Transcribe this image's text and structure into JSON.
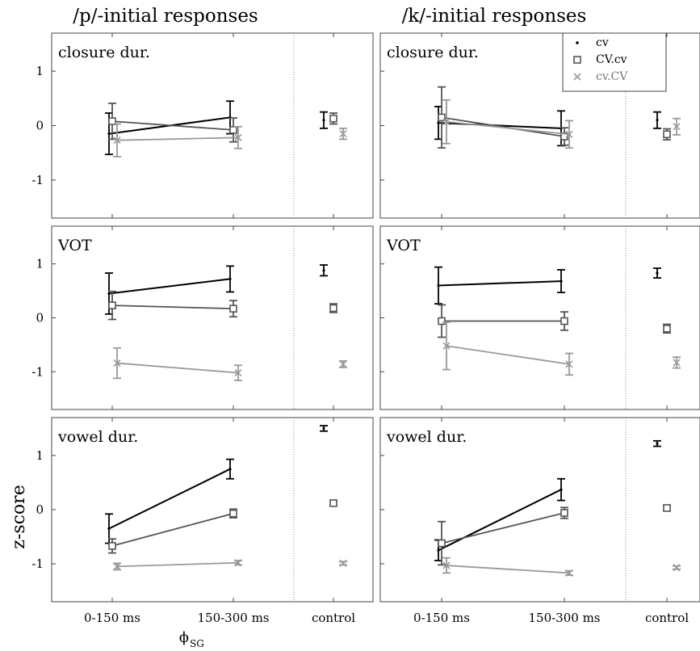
{
  "chart_data": {
    "type": "line",
    "description_free": true,
    "y_axis": {
      "label": "z-score",
      "ylim": [
        -1.7,
        1.7
      ],
      "ticks": [
        "1",
        "0",
        "-1"
      ],
      "tick_values": [
        1,
        0,
        -1
      ]
    },
    "x_axis": {
      "label_main": "ϕ",
      "label_sub": "SG",
      "categories": [
        "0-150 ms",
        "150-300 ms"
      ],
      "control_label": "control"
    },
    "legend": {
      "placement": "top-right",
      "entries": [
        {
          "name": "cv",
          "marker": "dot",
          "color": "#000000"
        },
        {
          "name": "CV.cv",
          "marker": "square",
          "color": "#555555"
        },
        {
          "name": "cv.CV",
          "marker": "x",
          "color": "#999999"
        }
      ]
    },
    "columns": [
      {
        "title": "/p/-initial responses"
      },
      {
        "title": "/k/-initial responses"
      }
    ],
    "rows": [
      {
        "label": "closure dur."
      },
      {
        "label": "VOT"
      },
      {
        "label": "vowel dur."
      }
    ],
    "panels": [
      {
        "column": 0,
        "row": 0,
        "series": [
          {
            "name": "cv",
            "values": [
              -0.15,
              0.15
            ],
            "err": [
              0.38,
              0.3
            ],
            "control": 0.1,
            "control_err": 0.15
          },
          {
            "name": "CV.cv",
            "values": [
              0.08,
              -0.08
            ],
            "err": [
              0.33,
              0.22
            ],
            "control": 0.13,
            "control_err": 0.1
          },
          {
            "name": "cv.CV",
            "values": [
              -0.27,
              -0.22
            ],
            "err": [
              0.3,
              0.2
            ],
            "control": -0.15,
            "control_err": 0.1
          }
        ]
      },
      {
        "column": 1,
        "row": 0,
        "series": [
          {
            "name": "cv",
            "values": [
              0.05,
              -0.05
            ],
            "err": [
              0.3,
              0.32
            ],
            "control": 0.1,
            "control_err": 0.15
          },
          {
            "name": "CV.cv",
            "values": [
              0.15,
              -0.2
            ],
            "err": [
              0.56,
              0.16
            ],
            "control": -0.16,
            "control_err": 0.1
          },
          {
            "name": "cv.CV",
            "values": [
              0.07,
              -0.16
            ],
            "err": [
              0.4,
              0.25
            ],
            "control": -0.02,
            "control_err": 0.15
          }
        ]
      },
      {
        "column": 0,
        "row": 1,
        "series": [
          {
            "name": "cv",
            "values": [
              0.45,
              0.72
            ],
            "err": [
              0.38,
              0.24
            ],
            "control": 0.88,
            "control_err": 0.1
          },
          {
            "name": "CV.cv",
            "values": [
              0.23,
              0.17
            ],
            "err": [
              0.26,
              0.15
            ],
            "control": 0.18,
            "control_err": 0.08
          },
          {
            "name": "cv.CV",
            "values": [
              -0.84,
              -1.02
            ],
            "err": [
              0.28,
              0.14
            ],
            "control": -0.86,
            "control_err": 0.06
          }
        ]
      },
      {
        "column": 1,
        "row": 1,
        "series": [
          {
            "name": "cv",
            "values": [
              0.6,
              0.68
            ],
            "err": [
              0.34,
              0.21
            ],
            "control": 0.83,
            "control_err": 0.09
          },
          {
            "name": "CV.cv",
            "values": [
              -0.06,
              -0.06
            ],
            "err": [
              0.3,
              0.17
            ],
            "control": -0.2,
            "control_err": 0.08
          },
          {
            "name": "cv.CV",
            "values": [
              -0.52,
              -0.86
            ],
            "err": [
              0.44,
              0.2
            ],
            "control": -0.83,
            "control_err": 0.1
          }
        ]
      },
      {
        "column": 0,
        "row": 2,
        "series": [
          {
            "name": "cv",
            "values": [
              -0.35,
              0.75
            ],
            "err": [
              0.27,
              0.18
            ],
            "control": 1.5,
            "control_err": 0.05
          },
          {
            "name": "CV.cv",
            "values": [
              -0.67,
              -0.07
            ],
            "err": [
              0.13,
              0.08
            ],
            "control": 0.12,
            "control_err": 0.04
          },
          {
            "name": "cv.CV",
            "values": [
              -1.05,
              -0.98
            ],
            "err": [
              0.06,
              0.04
            ],
            "control": -0.99,
            "control_err": 0.03
          }
        ]
      },
      {
        "column": 1,
        "row": 2,
        "series": [
          {
            "name": "cv",
            "values": [
              -0.75,
              0.37
            ],
            "err": [
              0.19,
              0.2
            ],
            "control": 1.22,
            "control_err": 0.05
          },
          {
            "name": "CV.cv",
            "values": [
              -0.62,
              -0.06
            ],
            "err": [
              0.4,
              0.1
            ],
            "control": 0.03,
            "control_err": 0.04
          },
          {
            "name": "cv.CV",
            "values": [
              -1.03,
              -1.17
            ],
            "err": [
              0.14,
              0.04
            ],
            "control": -1.07,
            "control_err": 0.03
          }
        ]
      }
    ],
    "colors": {
      "cv": "#000000",
      "CV.cv": "#555555",
      "cv.CV": "#999999",
      "frame": "#444444",
      "divider": "#888888"
    }
  }
}
